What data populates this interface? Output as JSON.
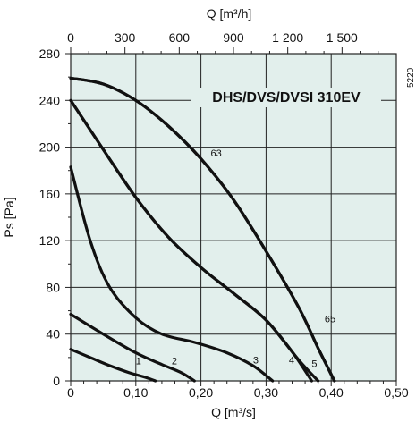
{
  "chart_data": {
    "type": "line",
    "title": "DHS/DVS/DVSI 310EV",
    "code": "5220",
    "xlabel": "Q [m³/s]",
    "ylabel": "Ps [Pa]",
    "x2label": "Q [m³/h]",
    "xlim": [
      0,
      0.5
    ],
    "ylim": [
      0,
      280
    ],
    "x2lim": [
      0,
      1800
    ],
    "x_ticks": [
      0,
      0.1,
      0.2,
      0.3,
      0.4,
      0.5
    ],
    "x_tick_labels": [
      "0",
      "0,10",
      "0,20",
      "0,30",
      "0,40",
      "0,50"
    ],
    "y_ticks": [
      0,
      40,
      80,
      120,
      160,
      200,
      240,
      280
    ],
    "y_tick_labels": [
      "0",
      "40",
      "80",
      "120",
      "160",
      "200",
      "240",
      "280"
    ],
    "x2_ticks": [
      0,
      300,
      600,
      900,
      1200,
      1500
    ],
    "x2_tick_labels": [
      "0",
      "300",
      "600",
      "900",
      "1 200",
      "1 500"
    ],
    "grid": true,
    "background": "#e2efec",
    "line_color": "#111111",
    "series": [
      {
        "name": "1",
        "label_at": [
          0.1,
          14
        ],
        "x": [
          0,
          0.03,
          0.06,
          0.09,
          0.115,
          0.13
        ],
        "y": [
          27,
          20,
          13,
          7,
          3,
          0
        ]
      },
      {
        "name": "2",
        "label_at": [
          0.155,
          14
        ],
        "x": [
          0,
          0.05,
          0.1,
          0.14,
          0.17,
          0.19
        ],
        "y": [
          57,
          40,
          24,
          14,
          7,
          0
        ]
      },
      {
        "name": "3",
        "label_at": [
          0.28,
          15
        ],
        "x": [
          0,
          0.03,
          0.06,
          0.1,
          0.14,
          0.19,
          0.24,
          0.28,
          0.31
        ],
        "y": [
          183,
          120,
          80,
          54,
          40,
          33,
          24,
          13,
          0
        ]
      },
      {
        "name": "4",
        "label_at": [
          0.335,
          15
        ],
        "x": [
          0,
          0.05,
          0.1,
          0.15,
          0.2,
          0.25,
          0.3,
          0.34,
          0.37
        ],
        "y": [
          240,
          198,
          157,
          123,
          97,
          75,
          52,
          25,
          0
        ]
      },
      {
        "name": "5",
        "label_at": [
          0.37,
          12
        ],
        "x": [
          0,
          0.05,
          0.1,
          0.15,
          0.2,
          0.25,
          0.3,
          0.35,
          0.38
        ],
        "y": [
          240,
          198,
          157,
          123,
          97,
          75,
          52,
          18,
          0
        ]
      },
      {
        "name": "63",
        "label_at": [
          0.215,
          192
        ],
        "x": [
          0,
          0.05,
          0.1,
          0.15,
          0.2,
          0.25,
          0.3,
          0.35,
          0.38,
          0.405
        ],
        "y": [
          259,
          254,
          240,
          218,
          190,
          155,
          111,
          63,
          28,
          0
        ]
      },
      {
        "name": "65",
        "label_at": [
          0.39,
          50
        ],
        "x": [
          0,
          0.05,
          0.1,
          0.15,
          0.2,
          0.25,
          0.3,
          0.35,
          0.38,
          0.405
        ],
        "y": [
          259,
          254,
          240,
          218,
          190,
          155,
          111,
          63,
          28,
          0
        ]
      }
    ]
  }
}
